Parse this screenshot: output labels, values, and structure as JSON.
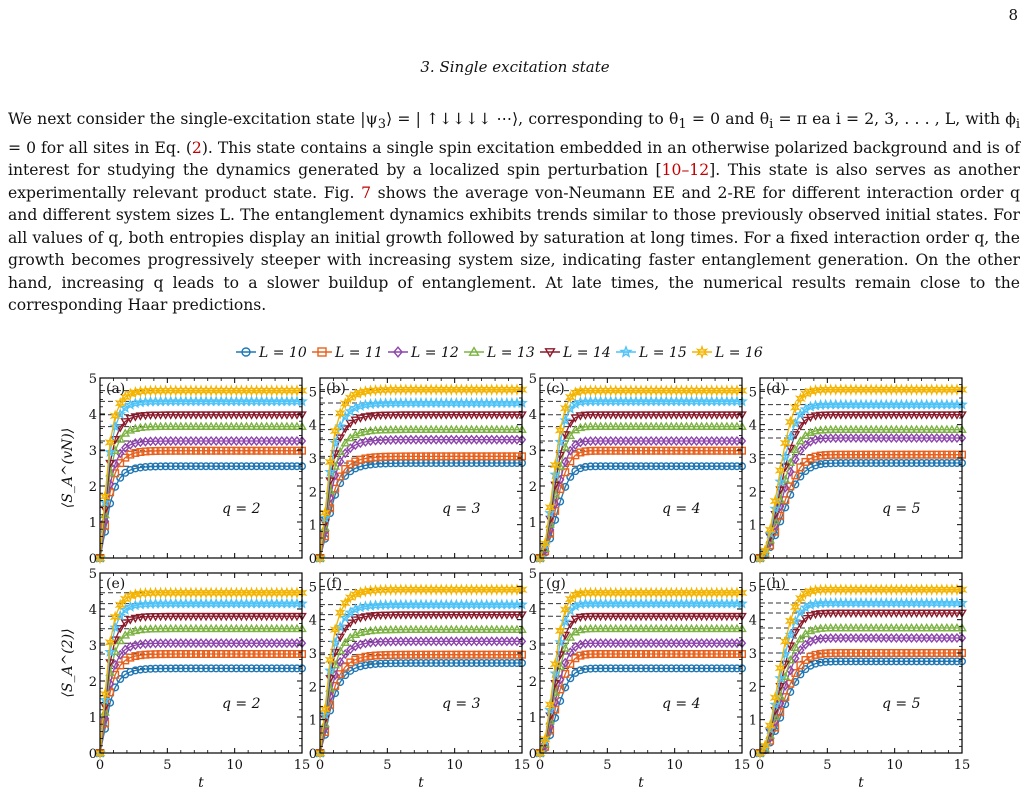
{
  "page_number": "8",
  "section_title": "3.   Single excitation state",
  "paragraph": {
    "p1": "We next consider the single-excitation state |ψ",
    "sub3": "3",
    "p2": "⟩ = | ↑↓↓↓↓ ⋯⟩, corresponding to θ",
    "sub1": "1",
    "p3": " = 0 and θ",
    "subi": "i",
    "p4": " = π ea i = 2, 3, . . . , L, with ϕ",
    "subi2": "i",
    "p5": " = 0 for all sites in Eq. (",
    "eq_ref": "2",
    "p6": "). This state contains a single spin excitation embedded in an otherwise polarized background and is of interest for studying the dynamics generated by a localized spin perturbation [",
    "cite": "10–12",
    "p7": "]. This state is also serves as another experimentally relevant product state. Fig. ",
    "fig_ref": "7",
    "p8": " shows the average von-Neumann EE and 2-RE for different interaction order q and different system sizes L. The entanglement dynamics exhibits trends similar to those previously observed initial states. For all values of q, both entropies display an initial growth followed by saturation at long times. For a fixed interaction order q, the growth becomes progressively steeper with increasing system size, indicating faster entanglement generation. On the other hand, increasing q leads to a slower buildup of entanglement. At late times, the numerical results remain close to the corresponding Haar predictions."
  },
  "chart_data": {
    "type": "line",
    "legend": [
      {
        "name": "L = 10",
        "color": "#1f77b4",
        "marker": "circle"
      },
      {
        "name": "L = 11",
        "color": "#e8601c",
        "marker": "square"
      },
      {
        "name": "L = 12",
        "color": "#8e44ad",
        "marker": "diamond"
      },
      {
        "name": "L = 13",
        "color": "#7cb342",
        "marker": "triangle-up"
      },
      {
        "name": "L = 14",
        "color": "#8b1a2b",
        "marker": "triangle-down"
      },
      {
        "name": "L = 15",
        "color": "#4fc3f7",
        "marker": "star"
      },
      {
        "name": "L = 16",
        "color": "#f4b400",
        "marker": "hexagram"
      }
    ],
    "xlabel": "t",
    "ylabel_top": "⟨S_A^(vN)⟩",
    "ylabel_bottom": "⟨S_A^(2)⟩",
    "x_ticks": [
      0,
      5,
      10,
      15
    ],
    "xlim": [
      0,
      15
    ],
    "panels": [
      {
        "letter": "(a)",
        "q_label": "q = 2",
        "q": 2,
        "ylim": [
          0,
          5
        ],
        "y_ticks": [
          0,
          1,
          2,
          3,
          4,
          5
        ],
        "saturation": [
          2.55,
          2.98,
          3.25,
          3.65,
          3.98,
          4.35,
          4.65
        ]
      },
      {
        "letter": "(b)",
        "q_label": "q = 3",
        "q": 3,
        "ylim": [
          0,
          5.4
        ],
        "y_ticks": [
          0,
          1,
          2,
          3,
          4,
          5
        ],
        "saturation": [
          2.85,
          3.05,
          3.55,
          3.85,
          4.3,
          4.65,
          5.05
        ]
      },
      {
        "letter": "(c)",
        "q_label": "q = 4",
        "q": 4,
        "ylim": [
          0,
          5
        ],
        "y_ticks": [
          0,
          1,
          2,
          3,
          4,
          5
        ],
        "saturation": [
          2.55,
          2.98,
          3.25,
          3.65,
          3.98,
          4.35,
          4.65
        ]
      },
      {
        "letter": "(d)",
        "q_label": "q = 5",
        "q": 5,
        "ylim": [
          0,
          5.4
        ],
        "y_ticks": [
          0,
          1,
          2,
          3,
          4,
          5
        ],
        "saturation": [
          2.85,
          3.1,
          3.6,
          3.85,
          4.3,
          4.6,
          5.05
        ]
      },
      {
        "letter": "(e)",
        "q_label": "q = 2",
        "q": 2,
        "ylim": [
          0,
          5
        ],
        "y_ticks": [
          0,
          1,
          2,
          3,
          4,
          5
        ],
        "saturation": [
          2.35,
          2.75,
          3.05,
          3.45,
          3.8,
          4.15,
          4.45
        ]
      },
      {
        "letter": "(f)",
        "q_label": "q = 3",
        "q": 3,
        "ylim": [
          0,
          5.4
        ],
        "y_ticks": [
          0,
          1,
          2,
          3,
          4,
          5
        ],
        "saturation": [
          2.7,
          2.95,
          3.35,
          3.7,
          4.15,
          4.45,
          4.9
        ]
      },
      {
        "letter": "(g)",
        "q_label": "q = 4",
        "q": 4,
        "ylim": [
          0,
          5
        ],
        "y_ticks": [
          0,
          1,
          2,
          3,
          4,
          5
        ],
        "saturation": [
          2.35,
          2.75,
          3.05,
          3.45,
          3.8,
          4.15,
          4.45
        ]
      },
      {
        "letter": "(h)",
        "q_label": "q = 5",
        "q": 5,
        "ylim": [
          0,
          5.4
        ],
        "y_ticks": [
          0,
          1,
          2,
          3,
          4,
          5
        ],
        "saturation": [
          2.75,
          3.0,
          3.45,
          3.75,
          4.2,
          4.5,
          4.9
        ]
      }
    ]
  }
}
